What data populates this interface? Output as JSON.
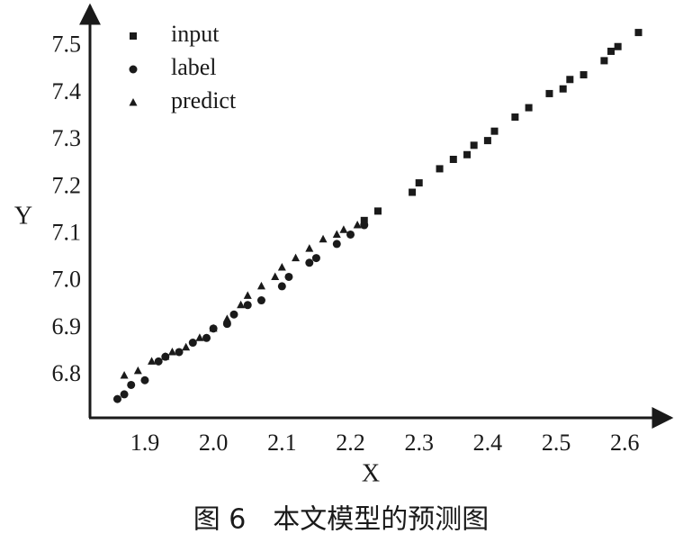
{
  "chart_data": {
    "type": "scatter",
    "x_label": "X",
    "y_label": "Y",
    "caption": "图 6　本文模型的预测图",
    "xlim": [
      1.82,
      2.66
    ],
    "ylim": [
      6.71,
      7.58
    ],
    "xticks": [
      1.9,
      {
        "value": 2.0,
        "label": "2.0"
      },
      2.1,
      2.2,
      2.3,
      2.4,
      2.5,
      2.6
    ],
    "yticks": [
      6.8,
      6.9,
      {
        "value": 7.0,
        "label": "7.0"
      },
      7.1,
      7.2,
      7.3,
      7.4,
      7.5
    ],
    "series": [
      {
        "name": "input",
        "marker": "square",
        "color": "#1a1a1a",
        "x": [
          2.22,
          2.24,
          2.29,
          2.3,
          2.33,
          2.35,
          2.37,
          2.38,
          2.4,
          2.41,
          2.44,
          2.46,
          2.49,
          2.51,
          2.52,
          2.54,
          2.57,
          2.58,
          2.59,
          2.62
        ],
        "values": [
          7.13,
          7.15,
          7.19,
          7.21,
          7.24,
          7.26,
          7.27,
          7.29,
          7.3,
          7.32,
          7.35,
          7.37,
          7.4,
          7.41,
          7.43,
          7.44,
          7.47,
          7.49,
          7.5,
          7.53
        ]
      },
      {
        "name": "label",
        "marker": "circle",
        "color": "#1a1a1a",
        "x": [
          1.86,
          1.87,
          1.88,
          1.9,
          1.92,
          1.93,
          1.95,
          1.97,
          1.99,
          2.0,
          2.02,
          2.03,
          2.05,
          2.07,
          2.1,
          2.11,
          2.14,
          2.15,
          2.18,
          2.2,
          2.22
        ],
        "values": [
          6.75,
          6.76,
          6.78,
          6.79,
          6.83,
          6.84,
          6.85,
          6.87,
          6.88,
          6.9,
          6.91,
          6.93,
          6.95,
          6.96,
          6.99,
          7.01,
          7.04,
          7.05,
          7.08,
          7.1,
          7.12
        ]
      },
      {
        "name": "predict",
        "marker": "triangle",
        "color": "#1a1a1a",
        "x": [
          1.87,
          1.89,
          1.91,
          1.93,
          1.94,
          1.96,
          1.98,
          2.0,
          2.02,
          2.04,
          2.05,
          2.07,
          2.09,
          2.1,
          2.12,
          2.14,
          2.16,
          2.18,
          2.19,
          2.21
        ],
        "values": [
          6.8,
          6.81,
          6.83,
          6.84,
          6.85,
          6.86,
          6.88,
          6.9,
          6.92,
          6.95,
          6.97,
          6.99,
          7.01,
          7.03,
          7.05,
          7.07,
          7.09,
          7.1,
          7.11,
          7.12
        ]
      }
    ]
  }
}
